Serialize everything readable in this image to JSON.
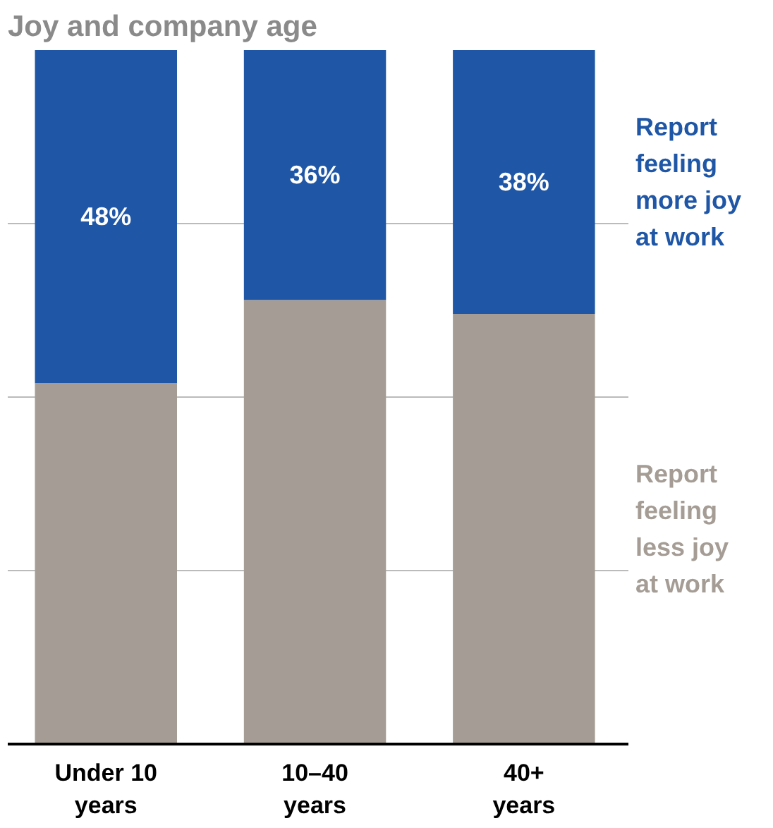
{
  "chart_data": {
    "type": "bar",
    "title": "Joy and company age",
    "categories": [
      "Under 10 years",
      "10–40 years",
      "40+ years"
    ],
    "stacked": true,
    "series": [
      {
        "name": "Report feeling less joy at work",
        "color": "#a59d95",
        "values": [
          52,
          64,
          62
        ]
      },
      {
        "name": "Report feeling more joy at work",
        "color": "#1f57a6",
        "values": [
          48,
          36,
          38
        ],
        "value_labels": [
          "48%",
          "36%",
          "38%"
        ]
      }
    ],
    "ylim": [
      0,
      100
    ],
    "grid": "y",
    "tick_labels": "x"
  }
}
